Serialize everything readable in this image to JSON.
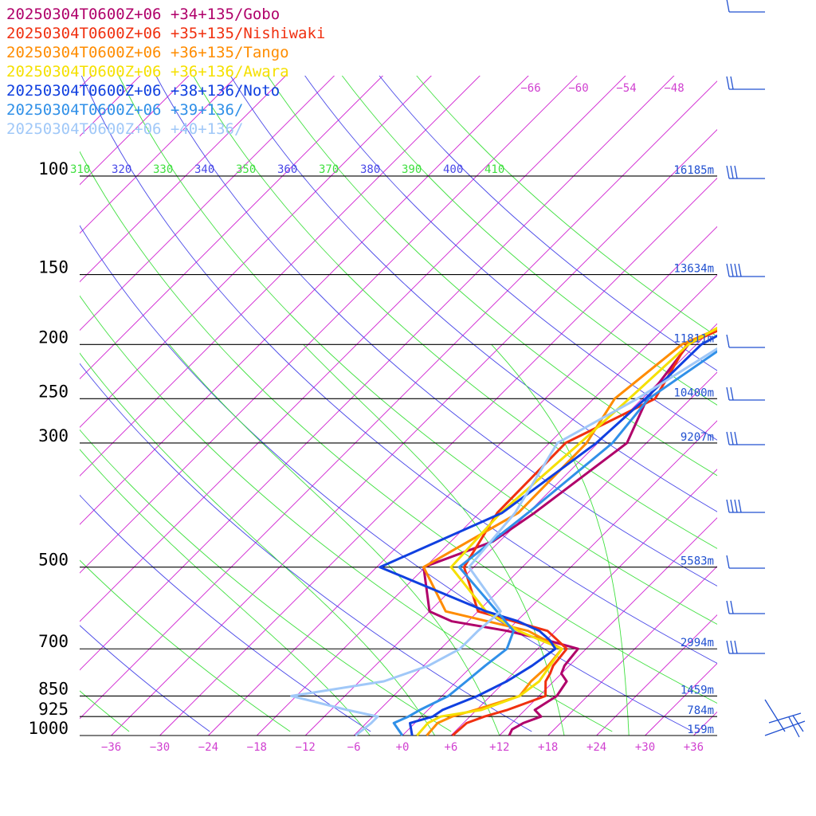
{
  "chart_data": {
    "type": "line",
    "legend": [
      {
        "label": "20250304T0600Z+06 +34+135/Gobo",
        "color": "#b0006a"
      },
      {
        "label": "20250304T0600Z+06 +35+135/Nishiwaki",
        "color": "#f03010"
      },
      {
        "label": "20250304T0600Z+06 +36+135/Tango",
        "color": "#ff8c00"
      },
      {
        "label": "20250304T0600Z+06 +36+136/Awara",
        "color": "#f5e000"
      },
      {
        "label": "20250304T0600Z+06 +38+136/Noto",
        "color": "#1040e0"
      },
      {
        "label": "20250304T0600Z+06 +39+136/",
        "color": "#3090e8"
      },
      {
        "label": "20250304T0600Z+06 +40+136/",
        "color": "#a0c8f8"
      }
    ],
    "pressure_levels": [
      {
        "p": 100,
        "label": "100",
        "height": "16185m"
      },
      {
        "p": 150,
        "label": "150",
        "height": "13634m"
      },
      {
        "p": 200,
        "label": "200",
        "height": "11811m"
      },
      {
        "p": 250,
        "label": "250",
        "height": "10400m"
      },
      {
        "p": 300,
        "label": "300",
        "height": "9207m"
      },
      {
        "p": 500,
        "label": "500",
        "height": "5583m"
      },
      {
        "p": 700,
        "label": "700",
        "height": "2994m"
      },
      {
        "p": 850,
        "label": "850",
        "height": "1459m"
      },
      {
        "p": 925,
        "label": "925",
        "height": "784m"
      },
      {
        "p": 1000,
        "label": "1000",
        "height": "159m"
      }
    ],
    "x_ticks": [
      {
        "v": -36,
        "label": "−36"
      },
      {
        "v": -30,
        "label": "−30"
      },
      {
        "v": -24,
        "label": "−24"
      },
      {
        "v": -18,
        "label": "−18"
      },
      {
        "v": -12,
        "label": "−12"
      },
      {
        "v": -6,
        "label": "−6"
      },
      {
        "v": 0,
        "label": "+0"
      },
      {
        "v": 6,
        "label": "+6"
      },
      {
        "v": 12,
        "label": "+12"
      },
      {
        "v": 18,
        "label": "+18"
      },
      {
        "v": 24,
        "label": "+24"
      },
      {
        "v": 30,
        "label": "+30"
      },
      {
        "v": 36,
        "label": "+36"
      }
    ],
    "top_isotherm_labels": [
      "−66",
      "−60",
      "−54",
      "−48"
    ],
    "theta_labels": [
      "310",
      "320",
      "330",
      "340",
      "350",
      "360",
      "370",
      "380",
      "390",
      "400",
      "410"
    ],
    "series": [
      {
        "color": "#b0006a",
        "points": [
          [
            1000,
            13.2
          ],
          [
            975,
            12.8
          ],
          [
            950,
            13.4
          ],
          [
            925,
            14.8
          ],
          [
            900,
            13.2
          ],
          [
            850,
            14.2
          ],
          [
            800,
            13.6
          ],
          [
            775,
            12.0
          ],
          [
            750,
            11.4
          ],
          [
            700,
            11.0
          ],
          [
            675,
            6.0
          ],
          [
            650,
            0.0
          ],
          [
            625,
            -8.0
          ],
          [
            600,
            -12.0
          ],
          [
            500,
            -18.2
          ],
          [
            450,
            -12.8
          ],
          [
            400,
            -11.2
          ],
          [
            300,
            -8.4
          ],
          [
            250,
            -11.4
          ],
          [
            200,
            -13.0
          ],
          [
            175,
            -9.0
          ],
          [
            150,
            -6.0
          ],
          [
            100,
            -1.2
          ]
        ]
      },
      {
        "color": "#f03010",
        "points": [
          [
            1000,
            6.2
          ],
          [
            950,
            6.4
          ],
          [
            925,
            7.8
          ],
          [
            900,
            9.8
          ],
          [
            850,
            12.8
          ],
          [
            800,
            11.0
          ],
          [
            775,
            10.6
          ],
          [
            750,
            10.0
          ],
          [
            700,
            9.6
          ],
          [
            650,
            5.0
          ],
          [
            600,
            -6.0
          ],
          [
            500,
            -13.2
          ],
          [
            400,
            -15.8
          ],
          [
            300,
            -16.0
          ],
          [
            250,
            -10.4
          ],
          [
            200,
            -13.2
          ],
          [
            175,
            -8.2
          ],
          [
            150,
            -3.8
          ],
          [
            100,
            4.0
          ]
        ]
      },
      {
        "color": "#ff8c00",
        "points": [
          [
            1000,
            3.0
          ],
          [
            950,
            2.8
          ],
          [
            925,
            3.8
          ],
          [
            900,
            5.8
          ],
          [
            850,
            9.6
          ],
          [
            800,
            9.2
          ],
          [
            750,
            9.4
          ],
          [
            700,
            9.0
          ],
          [
            650,
            2.6
          ],
          [
            600,
            -10.0
          ],
          [
            500,
            -18.2
          ],
          [
            400,
            -13.2
          ],
          [
            300,
            -13.4
          ],
          [
            250,
            -15.4
          ],
          [
            200,
            -13.8
          ],
          [
            175,
            -8.6
          ],
          [
            150,
            -3.8
          ],
          [
            100,
            3.2
          ]
        ]
      },
      {
        "color": "#f5e000",
        "points": [
          [
            1000,
            1.8
          ],
          [
            950,
            1.6
          ],
          [
            925,
            2.4
          ],
          [
            900,
            6.6
          ],
          [
            850,
            9.6
          ],
          [
            800,
            10.2
          ],
          [
            750,
            9.6
          ],
          [
            700,
            9.0
          ],
          [
            650,
            1.4
          ],
          [
            600,
            -5.0
          ],
          [
            500,
            -14.8
          ],
          [
            400,
            -15.4
          ],
          [
            300,
            -14.2
          ],
          [
            250,
            -13.6
          ],
          [
            200,
            -13.0
          ],
          [
            175,
            -10.0
          ],
          [
            150,
            -5.8
          ],
          [
            100,
            2.6
          ]
        ]
      },
      {
        "color": "#1040e0",
        "points": [
          [
            1000,
            1.2
          ],
          [
            950,
            -0.6
          ],
          [
            925,
            1.4
          ],
          [
            900,
            1.8
          ],
          [
            850,
            4.4
          ],
          [
            800,
            6.2
          ],
          [
            750,
            7.4
          ],
          [
            700,
            8.2
          ],
          [
            675,
            6.4
          ],
          [
            650,
            4.0
          ],
          [
            625,
            0.2
          ],
          [
            600,
            -5.0
          ],
          [
            500,
            -23.6
          ],
          [
            400,
            -15.2
          ],
          [
            300,
            -12.2
          ],
          [
            250,
            -11.6
          ],
          [
            200,
            -11.4
          ],
          [
            175,
            -8.0
          ],
          [
            150,
            -5.4
          ],
          [
            100,
            3.0
          ]
        ]
      },
      {
        "color": "#3090e8",
        "points": [
          [
            1000,
            0.0
          ],
          [
            950,
            -2.6
          ],
          [
            925,
            -1.6
          ],
          [
            900,
            -1.0
          ],
          [
            850,
            0.8
          ],
          [
            800,
            1.2
          ],
          [
            750,
            1.6
          ],
          [
            700,
            2.2
          ],
          [
            650,
            0.8
          ],
          [
            500,
            -13.8
          ],
          [
            400,
            -12.0
          ],
          [
            300,
            -10.2
          ],
          [
            250,
            -11.2
          ],
          [
            200,
            -8.2
          ],
          [
            175,
            -5.2
          ],
          [
            150,
            -4.2
          ],
          [
            100,
            2.6
          ]
        ]
      },
      {
        "color": "#a0c8f8",
        "points": [
          [
            1000,
            -5.8
          ],
          [
            950,
            -5.4
          ],
          [
            925,
            -5.4
          ],
          [
            900,
            -10.0
          ],
          [
            850,
            -18.6
          ],
          [
            800,
            -9.0
          ],
          [
            750,
            -5.4
          ],
          [
            700,
            -3.6
          ],
          [
            650,
            -3.6
          ],
          [
            600,
            -3.2
          ],
          [
            500,
            -12.6
          ],
          [
            400,
            -13.6
          ],
          [
            300,
            -17.0
          ],
          [
            250,
            -12.6
          ],
          [
            200,
            -8.6
          ],
          [
            175,
            -4.6
          ],
          [
            150,
            -1.4
          ],
          [
            100,
            6.0
          ]
        ]
      }
    ]
  }
}
